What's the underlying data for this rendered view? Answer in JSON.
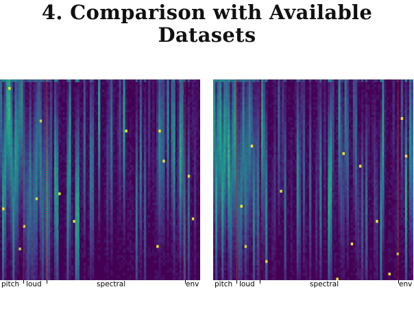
{
  "slide": {
    "title_line1": "4.  Comparison with Available",
    "title_line2": "Datasets"
  },
  "panels": [
    {
      "name": "left",
      "feature_labels": [
        "pitch",
        "loud",
        "spectral",
        "env"
      ]
    },
    {
      "name": "right",
      "feature_labels": [
        "pitch",
        "loud",
        "spectral",
        "env"
      ]
    }
  ],
  "colors": {
    "background": "#440154",
    "divider": "#cc2200",
    "colormap": "viridis"
  }
}
